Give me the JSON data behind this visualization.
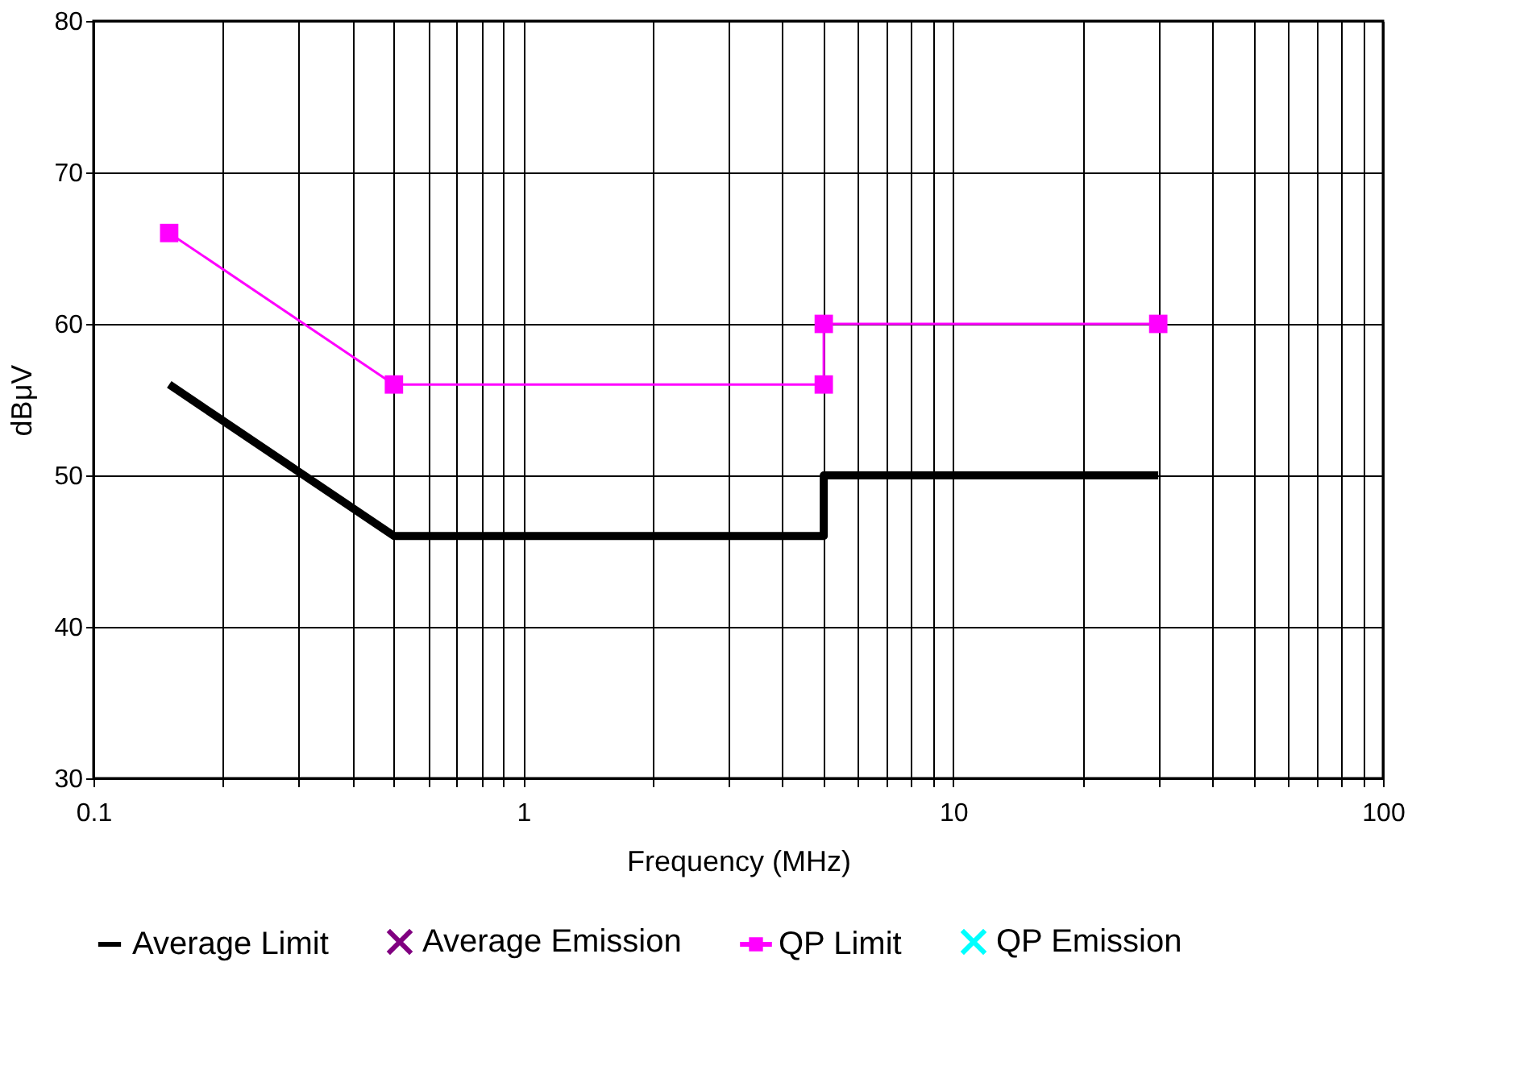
{
  "chart_data": {
    "type": "line",
    "xlabel": "Frequency (MHz)",
    "ylabel": "dBμV",
    "log": "x",
    "grid": true,
    "legend": "bottom",
    "xlim": [
      0.1,
      100
    ],
    "ylim": [
      30,
      80
    ],
    "xticks": [
      0.1,
      {
        "value": 0.2,
        "label": null
      },
      {
        "value": 0.3,
        "label": null
      },
      {
        "value": 0.4,
        "label": null
      },
      {
        "value": 0.5,
        "label": null
      },
      {
        "value": 0.6,
        "label": null
      },
      {
        "value": 0.7,
        "label": null
      },
      {
        "value": 0.8,
        "label": null
      },
      {
        "value": 0.9,
        "label": null
      },
      1,
      {
        "value": 2,
        "label": null
      },
      {
        "value": 3,
        "label": null
      },
      {
        "value": 4,
        "label": null
      },
      {
        "value": 5,
        "label": null
      },
      {
        "value": 6,
        "label": null
      },
      {
        "value": 7,
        "label": null
      },
      {
        "value": 8,
        "label": null
      },
      {
        "value": 9,
        "label": null
      },
      10,
      {
        "value": 20,
        "label": null
      },
      {
        "value": 30,
        "label": null
      },
      {
        "value": 40,
        "label": null
      },
      {
        "value": 50,
        "label": null
      },
      {
        "value": 60,
        "label": null
      },
      {
        "value": 70,
        "label": null
      },
      {
        "value": 80,
        "label": null
      },
      {
        "value": 90,
        "label": null
      },
      100
    ],
    "yticks": [
      30,
      40,
      50,
      60,
      70,
      80
    ],
    "series": [
      {
        "name": "Average Limit",
        "type": "line",
        "color": "#000000",
        "marker": "none",
        "line_style": "solid",
        "x": [
          0.15,
          0.5,
          5,
          5,
          30
        ],
        "values": [
          56,
          46,
          46,
          50,
          50
        ]
      },
      {
        "name": "Average Emission",
        "type": "scatter",
        "color": "#800080",
        "marker": "cross"
      },
      {
        "name": "QP Limit",
        "type": "line",
        "color": "#ff00ff",
        "marker": "square",
        "line_style": "solid",
        "x": [
          0.15,
          0.5,
          5,
          5,
          30
        ],
        "values": [
          66,
          56,
          56,
          60,
          60
        ]
      },
      {
        "name": "QP Emission",
        "type": "scatter",
        "color": "#00ffff",
        "marker": "cross"
      }
    ]
  }
}
